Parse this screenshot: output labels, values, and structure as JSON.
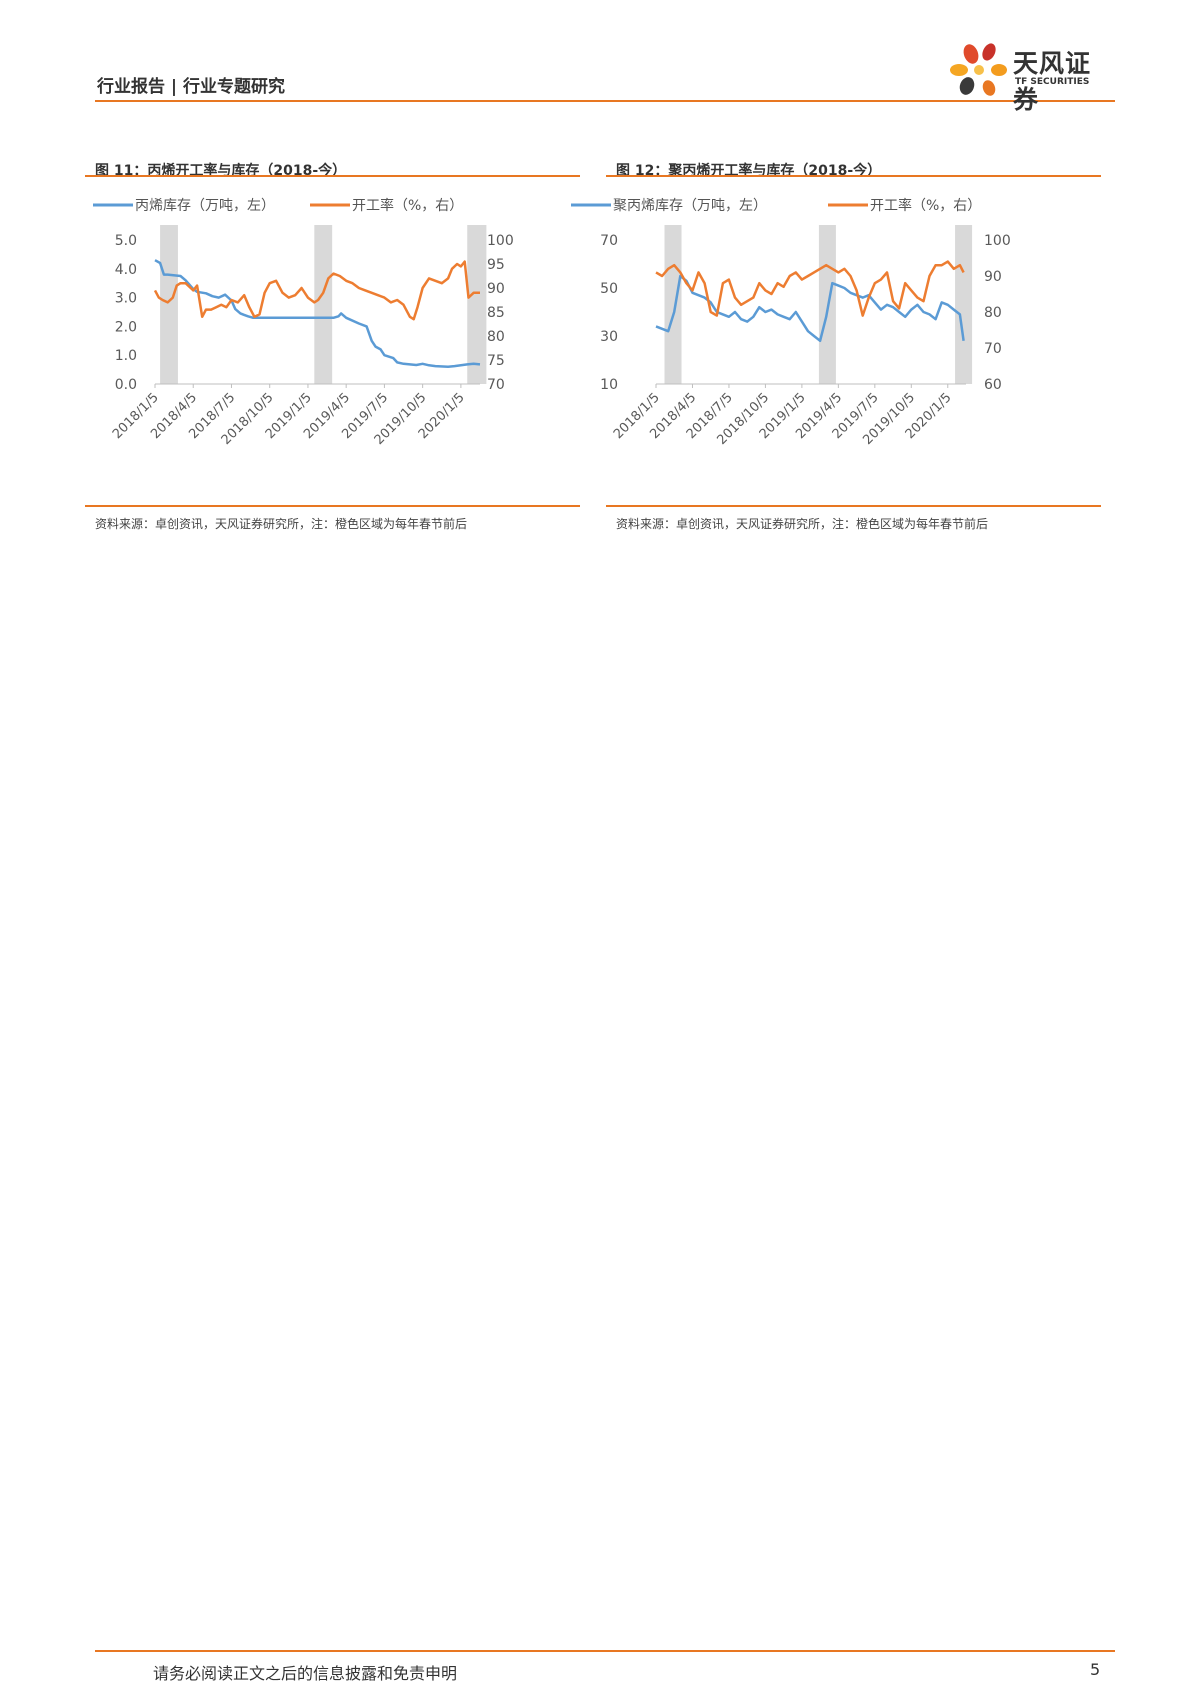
{
  "header": {
    "title": "行业报告 | 行业专题研究"
  },
  "logo": {
    "name_cn": "天风证券",
    "name_en": "TF SECURITIES"
  },
  "footer": {
    "disclaimer": "请务必阅读正文之后的信息披露和免责申明",
    "page_number": "5"
  },
  "colors": {
    "accent": "#e87722",
    "blue": "#5b9bd5",
    "orange": "#ed7d31",
    "shade": "#d9d9d9"
  },
  "figures": [
    {
      "title": "图 11：丙烯开工率与库存（2018-今）",
      "source": "资料来源：卓创资讯，天风证券研究所，注：橙色区域为每年春节前后"
    },
    {
      "title": "图 12：聚丙烯开工率与库存（2018-今）",
      "source": "资料来源：卓创资讯，天风证券研究所，注：橙色区域为每年春节前后"
    }
  ],
  "chart_data": [
    {
      "type": "line",
      "title": "图 11：丙烯开工率与库存（2018-今）",
      "x_range": [
        0,
        25.5
      ],
      "x_tick_labels": [
        "2018/1/5",
        "2018/4/5",
        "2018/7/5",
        "2018/10/5",
        "2019/1/5",
        "2019/4/5",
        "2019/7/5",
        "2019/10/5",
        "2020/1/5"
      ],
      "shaded_ranges": [
        [
          0.4,
          1.8
        ],
        [
          12.5,
          13.9
        ],
        [
          24.5,
          26
        ]
      ],
      "y_left": {
        "min": 0,
        "max": 5,
        "ticks": [
          "0.0",
          "1.0",
          "2.0",
          "3.0",
          "4.0",
          "5.0"
        ]
      },
      "y_right": {
        "min": 70,
        "max": 100,
        "ticks": [
          "70",
          "75",
          "80",
          "85",
          "90",
          "95",
          "100"
        ]
      },
      "series": [
        {
          "name": "丙烯库存（万吨，左）",
          "axis": "left",
          "x": [
            0,
            0.4,
            0.7,
            1,
            2,
            2.4,
            3,
            3.3,
            4,
            4.5,
            5,
            5.5,
            6,
            6.3,
            6.7,
            7,
            7.3,
            7.7,
            8,
            9,
            10,
            11,
            12,
            13,
            14,
            14.4,
            14.6,
            15,
            16,
            16.6,
            17,
            17.3,
            17.7,
            18,
            18.7,
            19,
            19.5,
            20,
            20.5,
            21,
            21.5,
            22,
            23,
            23.5,
            24,
            24.5,
            25,
            25.5
          ],
          "y": [
            4.3,
            4.2,
            3.8,
            3.8,
            3.75,
            3.6,
            3.3,
            3.2,
            3.15,
            3.05,
            3.0,
            3.1,
            2.9,
            2.6,
            2.45,
            2.4,
            2.35,
            2.3,
            2.3,
            2.3,
            2.3,
            2.3,
            2.3,
            2.3,
            2.3,
            2.35,
            2.45,
            2.3,
            2.1,
            2.0,
            1.5,
            1.3,
            1.2,
            1.0,
            0.9,
            0.75,
            0.7,
            0.68,
            0.66,
            0.7,
            0.65,
            0.62,
            0.6,
            0.62,
            0.65,
            0.68,
            0.7,
            0.68
          ]
        },
        {
          "name": "开工率（%，右）",
          "axis": "right",
          "x": [
            0,
            0.3,
            0.6,
            1,
            1.4,
            1.7,
            2,
            2.4,
            2.8,
            3,
            3.3,
            3.7,
            4,
            4.4,
            4.8,
            5.2,
            5.6,
            6,
            6.5,
            7,
            7.4,
            7.8,
            8.2,
            8.6,
            9,
            9.5,
            10,
            10.5,
            11,
            11.5,
            12,
            12.5,
            12.8,
            13.2,
            13.6,
            14,
            14.5,
            15,
            15.5,
            16,
            16.5,
            17,
            17.5,
            18,
            18.5,
            19,
            19.5,
            20,
            20.3,
            20.6,
            21,
            21.5,
            22,
            22.5,
            23,
            23.3,
            23.7,
            24,
            24.3,
            24.6,
            25,
            25.5
          ],
          "y": [
            89.5,
            88,
            87.5,
            87,
            88,
            90.5,
            91,
            91,
            90,
            89.5,
            90.5,
            84,
            85.5,
            85.5,
            86,
            86.5,
            86,
            87.5,
            87,
            88.5,
            86,
            84,
            84.5,
            89,
            91,
            91.5,
            89,
            88,
            88.5,
            90,
            88,
            87,
            87.5,
            89,
            92,
            93,
            92.5,
            91.5,
            91,
            90,
            89.5,
            89,
            88.5,
            88,
            87,
            87.5,
            86.5,
            84,
            83.5,
            86,
            90,
            92,
            91.5,
            91,
            92,
            94,
            95,
            94.5,
            95.5,
            88,
            89,
            89
          ]
        }
      ]
    },
    {
      "type": "line",
      "title": "图 12：聚丙烯开工率与库存（2018-今）",
      "x_range": [
        0,
        25.5
      ],
      "x_tick_labels": [
        "2018/1/5",
        "2018/4/5",
        "2018/7/5",
        "2018/10/5",
        "2019/1/5",
        "2019/4/5",
        "2019/7/5",
        "2019/10/5",
        "2020/1/5"
      ],
      "shaded_ranges": [
        [
          0.7,
          2.1
        ],
        [
          13.4,
          14.8
        ],
        [
          24.6,
          26
        ]
      ],
      "y_left": {
        "min": 10,
        "max": 70,
        "ticks": [
          "10",
          "30",
          "50",
          "70"
        ]
      },
      "y_right": {
        "min": 60,
        "max": 100,
        "ticks": [
          "60",
          "70",
          "80",
          "90",
          "100"
        ]
      },
      "series": [
        {
          "name": "聚丙烯库存（万吨，左）",
          "axis": "left",
          "x": [
            0,
            0.5,
            1,
            1.5,
            2,
            2.5,
            3,
            3.5,
            4,
            4.5,
            5,
            5.5,
            6,
            6.5,
            7,
            7.5,
            8,
            8.5,
            9,
            9.5,
            10,
            10.5,
            11,
            11.5,
            12,
            12.5,
            13,
            13.5,
            14,
            14.5,
            15,
            15.5,
            16,
            16.5,
            17,
            17.5,
            18,
            18.5,
            19,
            19.5,
            20,
            20.5,
            21,
            21.5,
            22,
            22.5,
            23,
            23.5,
            24,
            24.5,
            25,
            25.3
          ],
          "y": [
            34,
            33,
            32,
            40,
            55,
            53,
            48,
            47,
            46,
            44,
            40,
            39,
            38,
            40,
            37,
            36,
            38,
            42,
            40,
            41,
            39,
            38,
            37,
            40,
            36,
            32,
            30,
            28,
            38,
            52,
            51,
            50,
            48,
            47,
            46,
            47,
            44,
            41,
            43,
            42,
            40,
            38,
            41,
            43,
            40,
            39,
            37,
            44,
            43,
            41,
            39,
            28
          ]
        },
        {
          "name": "开工率（%，右）",
          "axis": "right",
          "x": [
            0,
            0.5,
            1,
            1.5,
            2,
            2.5,
            3,
            3.5,
            4,
            4.5,
            5,
            5.5,
            6,
            6.5,
            7,
            7.5,
            8,
            8.5,
            9,
            9.5,
            10,
            10.5,
            11,
            11.5,
            12,
            12.5,
            13,
            13.5,
            14,
            14.5,
            15,
            15.5,
            16,
            16.5,
            17,
            17.5,
            18,
            18.5,
            19,
            19.5,
            20,
            20.5,
            21,
            21.5,
            22,
            22.5,
            23,
            23.5,
            24,
            24.5,
            25,
            25.3
          ],
          "y": [
            91,
            90,
            92,
            93,
            91,
            88,
            86,
            91,
            88,
            80,
            79,
            88,
            89,
            84,
            82,
            83,
            84,
            88,
            86,
            85,
            88,
            87,
            90,
            91,
            89,
            90,
            91,
            92,
            93,
            92,
            91,
            92,
            90,
            86,
            79,
            84,
            88,
            89,
            91,
            83,
            81,
            88,
            86,
            84,
            83,
            90,
            93,
            93,
            94,
            92,
            93,
            91
          ]
        }
      ]
    }
  ]
}
